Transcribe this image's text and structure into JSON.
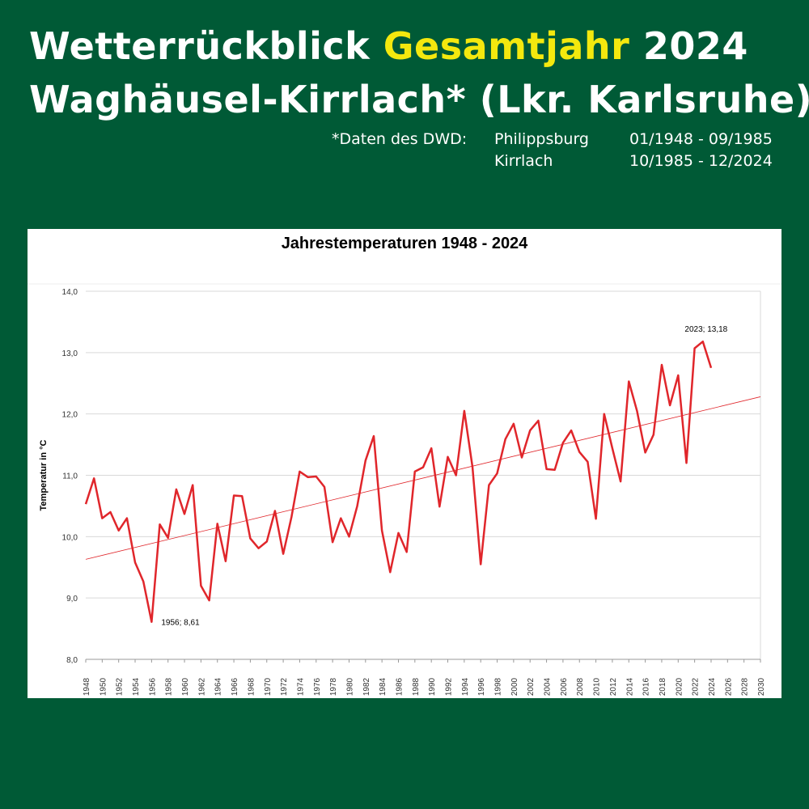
{
  "header": {
    "title_part1": "Wetterrückblick ",
    "title_highlight": "Gesamtjahr",
    "title_part2": " 2024",
    "subtitle": "Waghäusel-Kirrlach* (Lkr. Karlsruhe)",
    "source_label": "*Daten des DWD:",
    "stations": [
      {
        "name": "Philippsburg",
        "period": "01/1948 - 09/1985"
      },
      {
        "name": "Kirrlach",
        "period": "10/1985 - 12/2024"
      }
    ]
  },
  "colors": {
    "background": "#005a36",
    "highlight": "#f4e80e",
    "series_line": "#e0262b",
    "trend_line": "#e0262b",
    "grid": "#d9d9d9"
  },
  "chart_data": {
    "type": "line",
    "title": "Jahrestemperaturen 1948 - 2024",
    "xlabel": "",
    "ylabel": "Temperatur in °C",
    "xlim": [
      1948,
      2030
    ],
    "ylim": [
      8.0,
      14.0
    ],
    "y_ticks": [
      "8,0",
      "9,0",
      "10,0",
      "11,0",
      "12,0",
      "13,0",
      "14,0"
    ],
    "x_ticks": [
      "1948",
      "1950",
      "1952",
      "1954",
      "1956",
      "1958",
      "1960",
      "1962",
      "1964",
      "1966",
      "1968",
      "1970",
      "1972",
      "1974",
      "1976",
      "1978",
      "1980",
      "1982",
      "1984",
      "1986",
      "1988",
      "1990",
      "1992",
      "1994",
      "1996",
      "1998",
      "2000",
      "2002",
      "2004",
      "2006",
      "2008",
      "2010",
      "2012",
      "2014",
      "2016",
      "2018",
      "2020",
      "2022",
      "2024",
      "2026",
      "2028",
      "2030"
    ],
    "grid": true,
    "series": [
      {
        "x": [
          1948,
          1949,
          1950,
          1951,
          1952,
          1953,
          1954,
          1955,
          1956,
          1957,
          1958,
          1959,
          1960,
          1961,
          1962,
          1963,
          1964,
          1965,
          1966,
          1967,
          1968,
          1969,
          1970,
          1971,
          1972,
          1973,
          1974,
          1975,
          1976,
          1977,
          1978,
          1979,
          1980,
          1981,
          1982,
          1983,
          1984,
          1985,
          1986,
          1987,
          1988,
          1989,
          1990,
          1991,
          1992,
          1993,
          1994,
          1995,
          1996,
          1997,
          1998,
          1999,
          2000,
          2001,
          2002,
          2003,
          2004,
          2005,
          2006,
          2007,
          2008,
          2009,
          2010,
          2011,
          2012,
          2013,
          2014,
          2015,
          2016,
          2017,
          2018,
          2019,
          2020,
          2021,
          2022,
          2023,
          2024
        ],
        "values": [
          10.53,
          10.95,
          10.3,
          10.4,
          10.1,
          10.3,
          9.58,
          9.27,
          8.61,
          10.2,
          9.98,
          10.77,
          10.37,
          10.84,
          9.2,
          8.96,
          10.21,
          9.6,
          10.67,
          10.66,
          9.97,
          9.81,
          9.92,
          10.42,
          9.72,
          10.32,
          11.06,
          10.97,
          10.98,
          10.81,
          9.91,
          10.3,
          10.0,
          10.5,
          11.24,
          11.64,
          10.1,
          9.42,
          10.06,
          9.75,
          11.06,
          11.13,
          11.44,
          10.49,
          11.3,
          11.0,
          12.05,
          11.14,
          9.55,
          10.84,
          11.03,
          11.59,
          11.84,
          11.29,
          11.73,
          11.89,
          11.1,
          11.09,
          11.53,
          11.73,
          11.38,
          11.22,
          10.29,
          12.0,
          11.44,
          10.9,
          12.53,
          12.05,
          11.37,
          11.66,
          12.8,
          12.14,
          12.63,
          11.2,
          13.07,
          13.18,
          12.75
        ]
      }
    ],
    "trend": {
      "start": [
        1948,
        9.63
      ],
      "end": [
        2030,
        12.28
      ]
    },
    "annotations": [
      {
        "x": 1956,
        "y": 8.61,
        "text": "1956; 8,61"
      },
      {
        "x": 2023,
        "y": 13.18,
        "text": "2023; 13,18"
      }
    ]
  }
}
